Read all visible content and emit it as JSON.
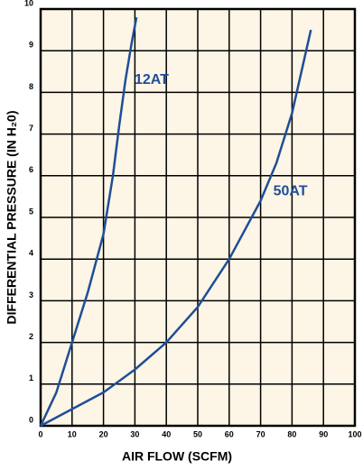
{
  "chart_data": {
    "type": "line",
    "xlabel": "AIR FLOW (SCFM)",
    "ylabel": "DIFFERENTIAL PRESSURE (IN H₂0)",
    "xlim": [
      0,
      100
    ],
    "xticks": [
      0,
      10,
      20,
      30,
      40,
      50,
      60,
      70,
      80,
      90,
      100
    ],
    "ylim": [
      0,
      10
    ],
    "yticks": [
      0,
      1,
      2,
      3,
      4,
      5,
      6,
      7,
      8,
      9,
      10
    ],
    "grid": true,
    "series": [
      {
        "name": "12AT",
        "color": "#1f4e96",
        "x": [
          0,
          5,
          10,
          15,
          20,
          23,
          25,
          27,
          29,
          30.5
        ],
        "values": [
          0,
          0.8,
          2,
          3.2,
          4.6,
          6,
          7.2,
          8.3,
          9.2,
          9.8
        ]
      },
      {
        "name": "50AT",
        "color": "#1f4e96",
        "x": [
          0,
          10,
          20,
          30,
          40,
          50,
          60,
          70,
          75,
          80,
          83,
          86
        ],
        "values": [
          0,
          0.4,
          0.8,
          1.35,
          2,
          2.85,
          4,
          5.4,
          6.3,
          7.5,
          8.5,
          9.5
        ]
      }
    ]
  }
}
